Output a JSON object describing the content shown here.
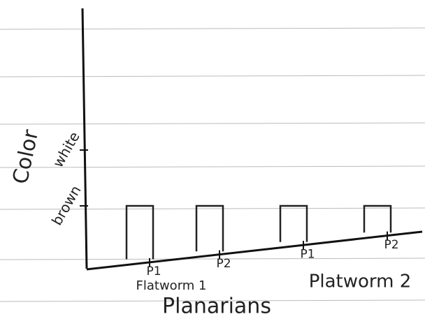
{
  "chart_data": {
    "type": "bar",
    "title": "Planarians",
    "y_label": "Color",
    "groups": [
      "Flatworm 1",
      "Platworm 2"
    ],
    "categories": [
      "P1",
      "P2",
      "P1",
      "P2"
    ],
    "values": [
      1,
      1,
      1,
      1
    ],
    "ylim": [
      0,
      3
    ],
    "yticks": [
      {
        "value": 1,
        "label": "brown"
      },
      {
        "value": 2,
        "label": "white"
      }
    ],
    "color": "#222"
  }
}
